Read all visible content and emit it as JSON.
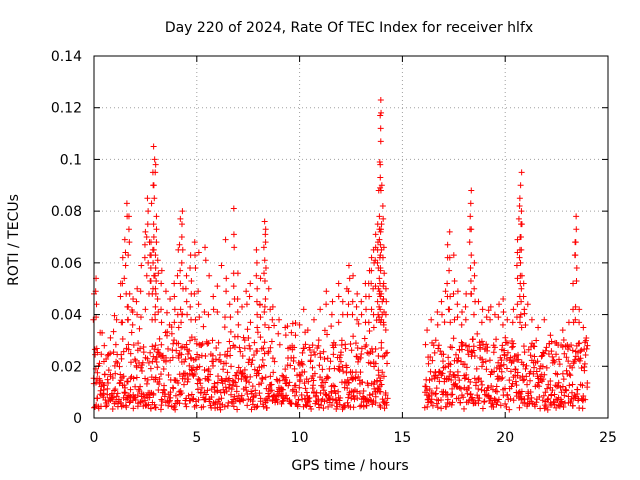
{
  "chart_data": {
    "type": "scatter",
    "title": "Day 220 of 2024, Rate Of TEC Index for receiver hlfx",
    "xlabel": "GPS time / hours",
    "ylabel": "ROTI / TECUs",
    "xlim": [
      0,
      25
    ],
    "ylim": [
      0,
      0.14
    ],
    "x_ticks": [
      "0",
      "5",
      "10",
      "15",
      "20",
      "25"
    ],
    "y_ticks": [
      "0",
      "0.02",
      "0.04",
      "0.06",
      "0.08",
      "0.1",
      "0.12",
      "0.14"
    ],
    "grid": true,
    "marker": "+",
    "color": "#ff0000",
    "data_gap_hours": [
      14.3,
      16.1
    ],
    "series": [
      {
        "name": "ROTI",
        "points": [
          [
            0.0,
            0.048
          ],
          [
            0.1,
            0.054
          ],
          [
            0.3,
            0.033
          ],
          [
            0.5,
            0.028
          ],
          [
            0.8,
            0.031
          ],
          [
            1.1,
            0.038
          ],
          [
            1.3,
            0.052
          ],
          [
            1.4,
            0.062
          ],
          [
            1.5,
            0.069
          ],
          [
            1.6,
            0.083
          ],
          [
            1.7,
            0.078
          ],
          [
            1.9,
            0.046
          ],
          [
            2.1,
            0.05
          ],
          [
            2.3,
            0.059
          ],
          [
            2.5,
            0.072
          ],
          [
            2.6,
            0.085
          ],
          [
            2.7,
            0.068
          ],
          [
            2.8,
            0.083
          ],
          [
            2.9,
            0.105
          ],
          [
            2.95,
            0.1
          ],
          [
            3.0,
            0.098
          ],
          [
            3.1,
            0.061
          ],
          [
            3.3,
            0.057
          ],
          [
            3.5,
            0.049
          ],
          [
            3.7,
            0.046
          ],
          [
            3.9,
            0.052
          ],
          [
            4.1,
            0.065
          ],
          [
            4.2,
            0.077
          ],
          [
            4.3,
            0.08
          ],
          [
            4.5,
            0.055
          ],
          [
            4.7,
            0.063
          ],
          [
            4.9,
            0.068
          ],
          [
            5.1,
            0.064
          ],
          [
            5.4,
            0.066
          ],
          [
            5.6,
            0.055
          ],
          [
            5.8,
            0.047
          ],
          [
            6.0,
            0.051
          ],
          [
            6.2,
            0.059
          ],
          [
            6.4,
            0.069
          ],
          [
            6.6,
            0.044
          ],
          [
            6.8,
            0.081
          ],
          [
            7.0,
            0.056
          ],
          [
            7.2,
            0.043
          ],
          [
            7.4,
            0.049
          ],
          [
            7.6,
            0.052
          ],
          [
            7.9,
            0.065
          ],
          [
            8.1,
            0.054
          ],
          [
            8.3,
            0.076
          ],
          [
            8.35,
            0.073
          ],
          [
            8.5,
            0.05
          ],
          [
            8.7,
            0.043
          ],
          [
            9.0,
            0.038
          ],
          [
            9.3,
            0.035
          ],
          [
            9.6,
            0.033
          ],
          [
            9.8,
            0.032
          ],
          [
            10.0,
            0.036
          ],
          [
            10.2,
            0.042
          ],
          [
            10.4,
            0.034
          ],
          [
            10.7,
            0.038
          ],
          [
            11.0,
            0.042
          ],
          [
            11.3,
            0.049
          ],
          [
            11.6,
            0.045
          ],
          [
            11.9,
            0.052
          ],
          [
            12.1,
            0.045
          ],
          [
            12.3,
            0.05
          ],
          [
            12.4,
            0.059
          ],
          [
            12.6,
            0.055
          ],
          [
            12.8,
            0.048
          ],
          [
            13.0,
            0.045
          ],
          [
            13.2,
            0.052
          ],
          [
            13.4,
            0.057
          ],
          [
            13.5,
            0.062
          ],
          [
            13.6,
            0.065
          ],
          [
            13.7,
            0.071
          ],
          [
            13.8,
            0.075
          ],
          [
            13.85,
            0.088
          ],
          [
            13.9,
            0.099
          ],
          [
            13.92,
            0.117
          ],
          [
            13.95,
            0.123
          ],
          [
            14.0,
            0.09
          ],
          [
            14.05,
            0.082
          ],
          [
            14.1,
            0.066
          ],
          [
            14.2,
            0.05
          ],
          [
            16.2,
            0.034
          ],
          [
            16.4,
            0.038
          ],
          [
            16.7,
            0.041
          ],
          [
            16.9,
            0.045
          ],
          [
            17.1,
            0.049
          ],
          [
            17.2,
            0.067
          ],
          [
            17.3,
            0.072
          ],
          [
            17.5,
            0.063
          ],
          [
            17.7,
            0.049
          ],
          [
            17.9,
            0.041
          ],
          [
            18.1,
            0.048
          ],
          [
            18.3,
            0.078
          ],
          [
            18.35,
            0.088
          ],
          [
            18.5,
            0.06
          ],
          [
            18.7,
            0.045
          ],
          [
            18.9,
            0.042
          ],
          [
            19.1,
            0.039
          ],
          [
            19.3,
            0.043
          ],
          [
            19.5,
            0.04
          ],
          [
            19.7,
            0.044
          ],
          [
            19.9,
            0.046
          ],
          [
            20.1,
            0.038
          ],
          [
            20.4,
            0.042
          ],
          [
            20.6,
            0.069
          ],
          [
            20.7,
            0.082
          ],
          [
            20.75,
            0.09
          ],
          [
            20.8,
            0.095
          ],
          [
            20.9,
            0.052
          ],
          [
            21.1,
            0.044
          ],
          [
            21.3,
            0.038
          ],
          [
            21.6,
            0.035
          ],
          [
            21.9,
            0.038
          ],
          [
            22.2,
            0.032
          ],
          [
            22.5,
            0.029
          ],
          [
            22.8,
            0.034
          ],
          [
            23.1,
            0.037
          ],
          [
            23.3,
            0.052
          ],
          [
            23.4,
            0.068
          ],
          [
            23.45,
            0.078
          ],
          [
            23.6,
            0.042
          ],
          [
            23.8,
            0.035
          ],
          [
            24.0,
            0.028
          ]
        ],
        "dense_band": {
          "description": "continuous dense cloud of points",
          "segments": [
            [
              0.0,
              14.3
            ],
            [
              16.1,
              24.0
            ]
          ],
          "typical_range": [
            0.005,
            0.03
          ]
        }
      }
    ]
  }
}
